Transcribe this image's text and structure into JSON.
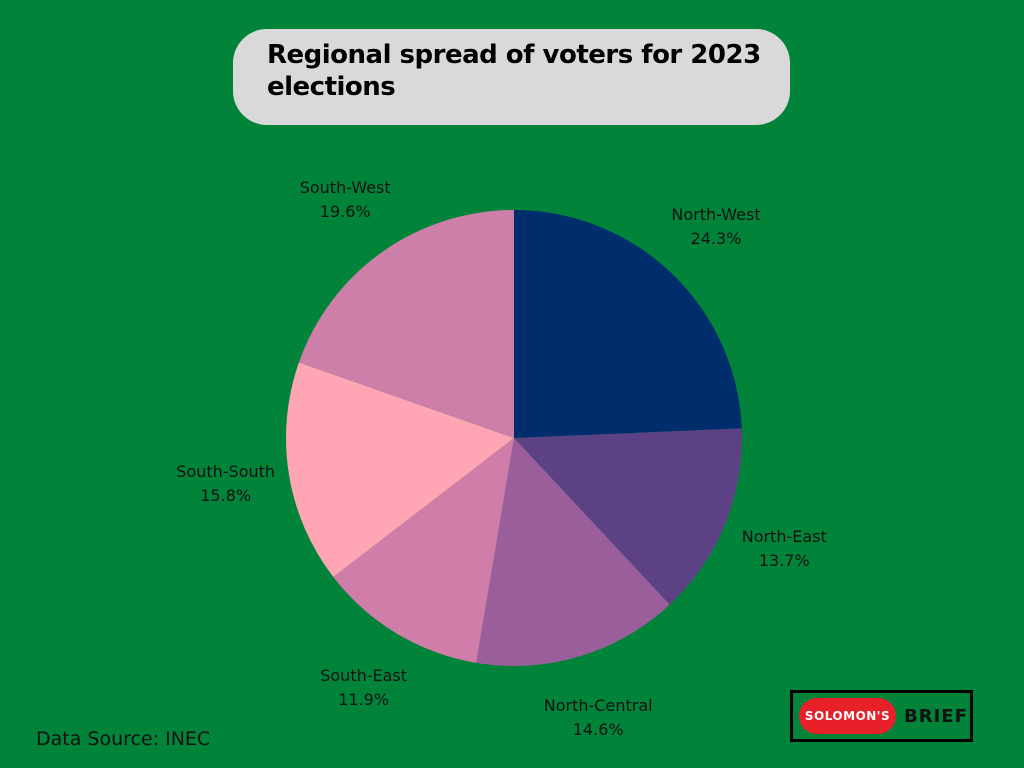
{
  "chart_data": {
    "type": "pie",
    "title": "Regional spread of voters for 2023 elections",
    "categories": [
      "North-West",
      "North-East",
      "North-Central",
      "South-East",
      "South-South",
      "South-West"
    ],
    "values": [
      24.3,
      13.7,
      14.6,
      11.9,
      15.8,
      19.6
    ],
    "value_labels": [
      "24.3%",
      "13.7%",
      "14.6%",
      "11.9%",
      "15.8%",
      "19.6%"
    ],
    "colors": [
      "#002d6b",
      "#5c4285",
      "#9a5f9b",
      "#d17da9",
      "#ffa5b4",
      "#cd7ea9"
    ],
    "start_angle": "12 o'clock",
    "direction": "clockwise"
  },
  "source_note": "Data Source: INEC",
  "brand": {
    "pill_text": "SOLOMON'S",
    "word_text": "BRIEF"
  },
  "colors": {
    "background": "#01843a",
    "title_box": "#d9d9d9",
    "brand_pill": "#e8202a"
  }
}
